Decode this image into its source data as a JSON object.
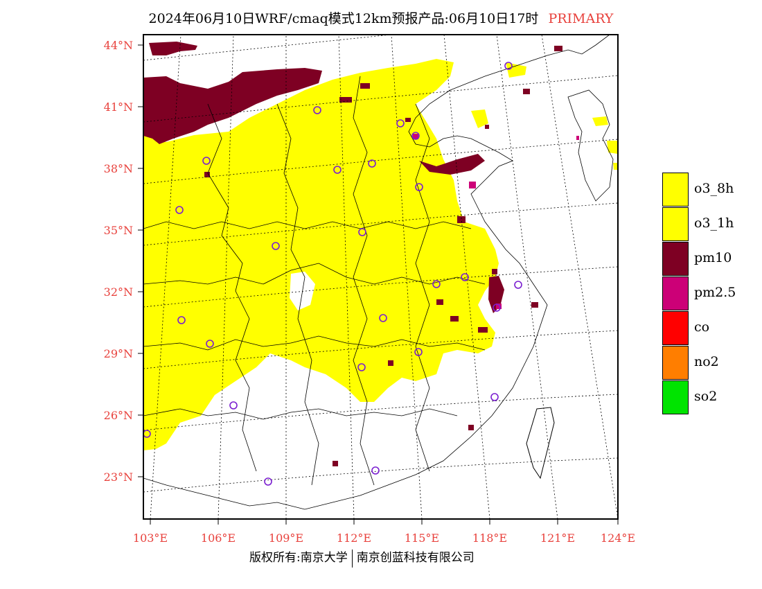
{
  "header": {
    "title": "2024年06月10日WRF/cmaq模式12km预报产品:06月10日17时",
    "tag": "PRIMARY"
  },
  "map": {
    "lat_labels": [
      "44°N",
      "41°N",
      "38°N",
      "35°N",
      "32°N",
      "29°N",
      "26°N",
      "23°N"
    ],
    "lon_labels": [
      "103°E",
      "106°E",
      "109°E",
      "112°E",
      "115°E",
      "118°E",
      "121°E",
      "124°E"
    ],
    "label_color": "#e8413c"
  },
  "legend": {
    "items": [
      {
        "label": "o3_8h",
        "color": "#ffff00"
      },
      {
        "label": "o3_1h",
        "color": "#ffff00"
      },
      {
        "label": "pm10",
        "color": "#7e0023"
      },
      {
        "label": "pm2.5",
        "color": "#cc0077"
      },
      {
        "label": "co",
        "color": "#ff0000"
      },
      {
        "label": "no2",
        "color": "#ff7e00"
      },
      {
        "label": "so2",
        "color": "#00e400"
      }
    ]
  },
  "footer": {
    "left": "版权所有:南京大学",
    "right": "南京创蓝科技有限公司"
  }
}
